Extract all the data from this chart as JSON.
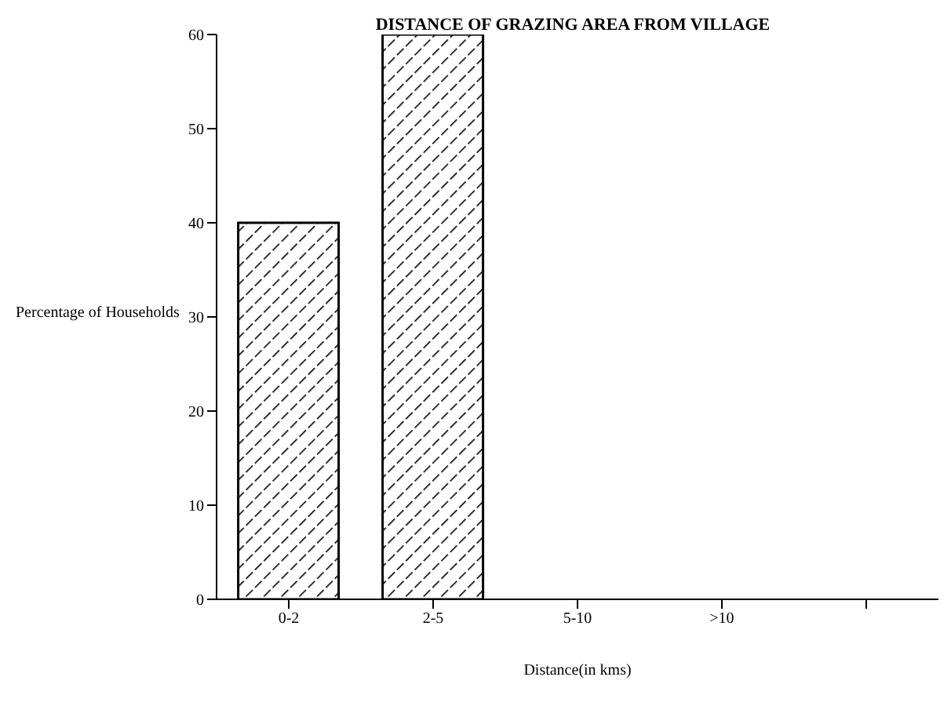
{
  "chart_data": {
    "type": "bar",
    "title": "DISTANCE OF GRAZING AREA FROM VILLAGE",
    "xlabel": "Distance(in kms)",
    "ylabel": "Percentage of Households",
    "categories": [
      "0-2",
      "2-5",
      "5-10",
      ">10",
      null
    ],
    "values": [
      40,
      60,
      0,
      0,
      0
    ],
    "color": "#000000",
    "ylim": [
      0,
      60
    ],
    "yticks": [
      0,
      10,
      20,
      30,
      40,
      50,
      60
    ],
    "grid": false
  }
}
